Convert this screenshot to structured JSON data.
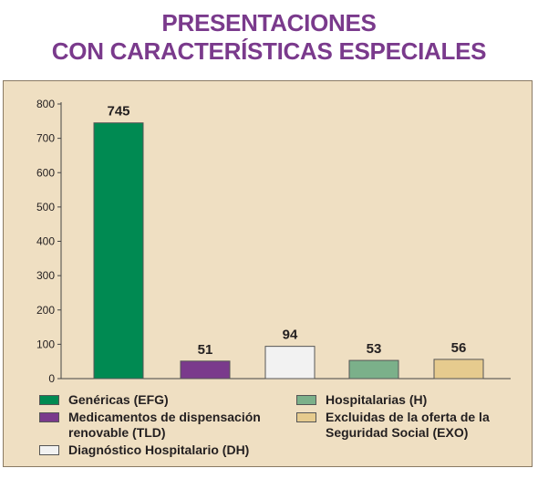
{
  "title": {
    "line1": "PRESENTACIONES",
    "line2": "CON CARACTERÍSTICAS ESPECIALES"
  },
  "chart_data": {
    "type": "bar",
    "categories": [
      "Genéricas (EFG)",
      "Medicamentos de dispensación renovable (TLD)",
      "Diagnóstico Hospitalario (DH)",
      "Hospitalarias (H)",
      "Excluidas de la oferta de la Seguridad Social (EXO)"
    ],
    "values": [
      745,
      51,
      94,
      53,
      56
    ],
    "colors": [
      "#008a52",
      "#7a3a8c",
      "#f2f2f2",
      "#7bb08a",
      "#e6cb8e"
    ],
    "ylim": [
      0,
      800
    ],
    "yticks": [
      0,
      100,
      200,
      300,
      400,
      500,
      600,
      700,
      800
    ],
    "grid": false,
    "legend_position": "bottom",
    "legend": [
      {
        "label": "Genéricas (EFG)",
        "color": "#008a52"
      },
      {
        "label": "Medicamentos de dispensación\nrenovable (TLD)",
        "color": "#7a3a8c"
      },
      {
        "label": "Diagnóstico Hospitalario (DH)",
        "color": "#f2f2f2"
      },
      {
        "label": "Hospitalarias (H)",
        "color": "#7bb08a"
      },
      {
        "label": "Excluidas de la oferta de la\nSeguridad Social (EXO)",
        "color": "#e6cb8e"
      }
    ]
  }
}
